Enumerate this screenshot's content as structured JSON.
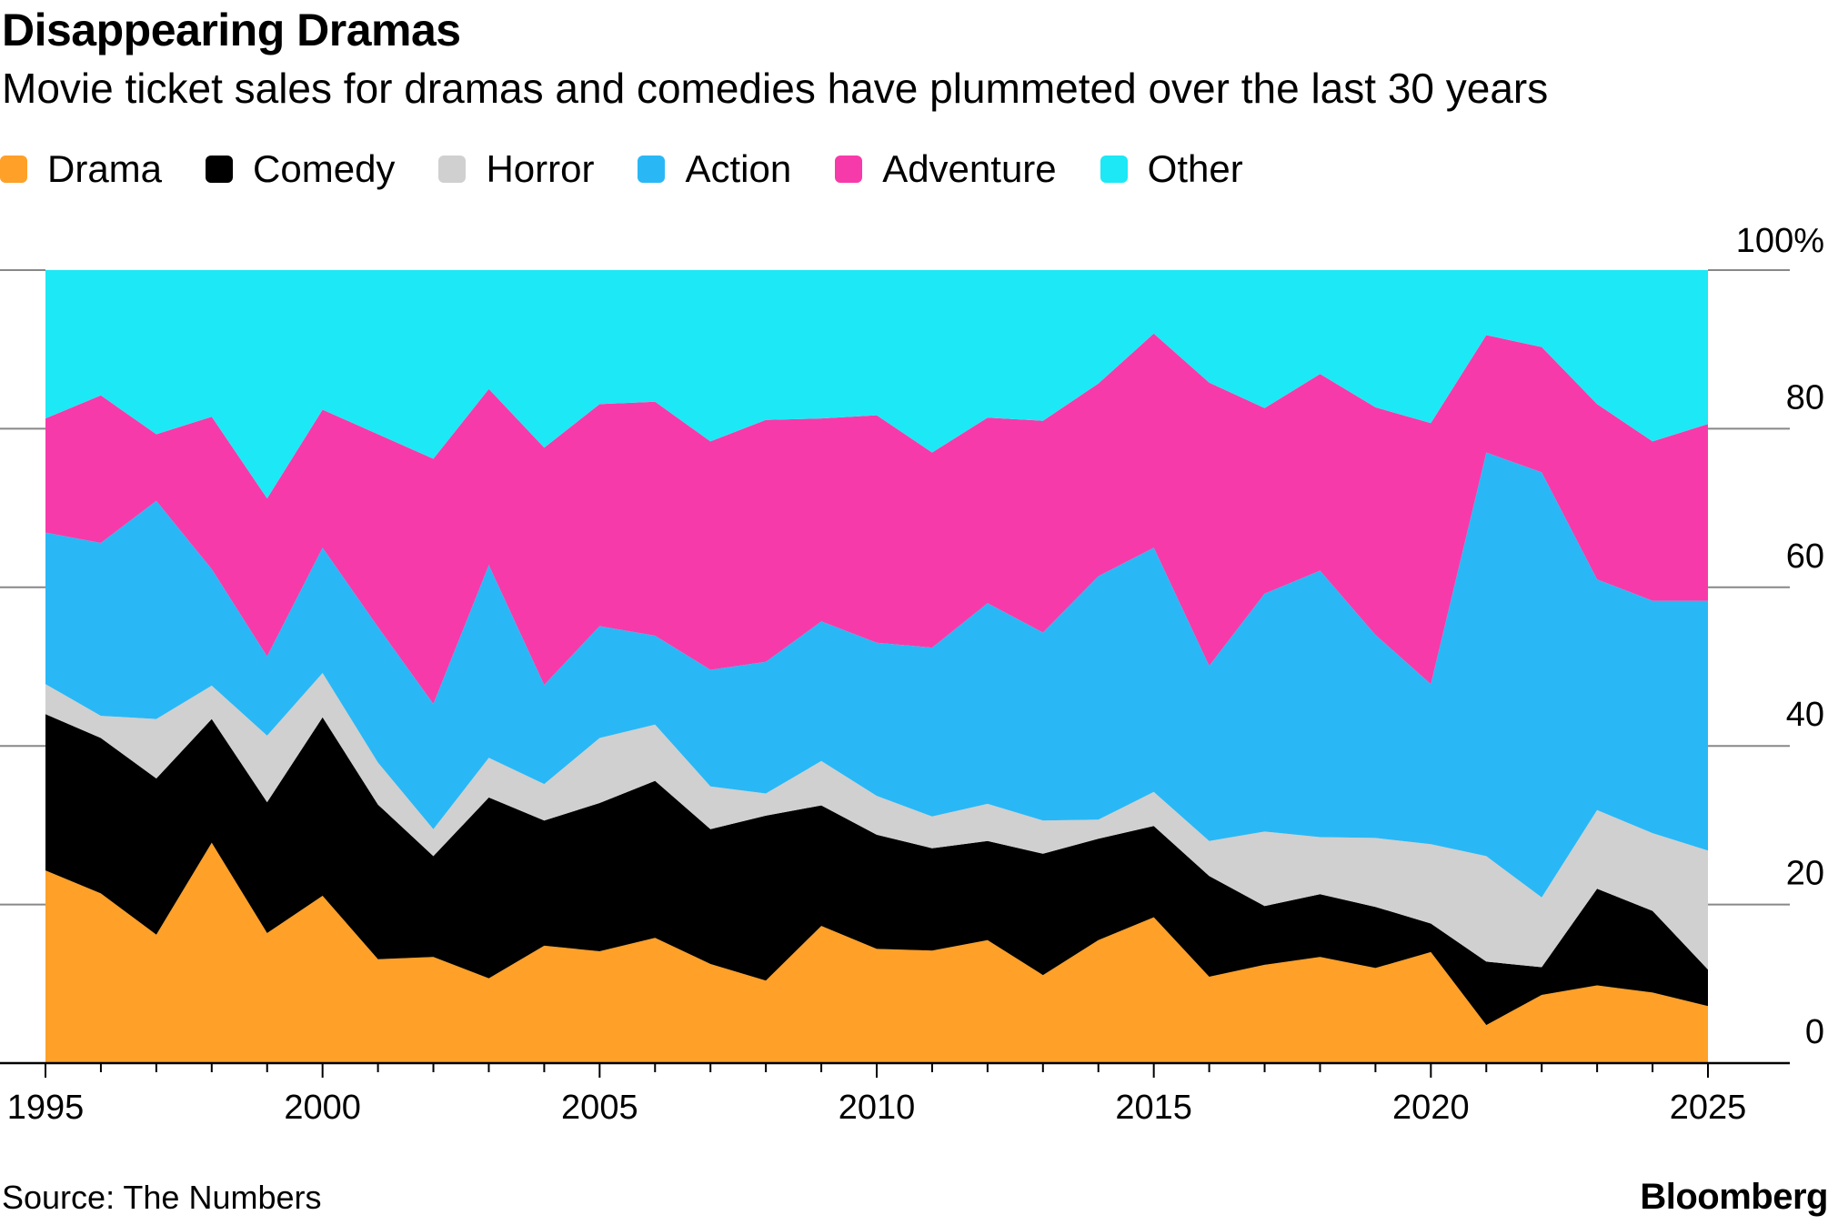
{
  "header": {
    "title": "Disappearing Dramas",
    "subtitle": "Movie ticket sales for dramas and comedies have plummeted over the last 30 years"
  },
  "footer": {
    "source": "Source: The Numbers",
    "brand": "Bloomberg"
  },
  "chart_data": {
    "type": "area",
    "stacked": true,
    "title": "Disappearing Dramas",
    "subtitle": "Movie ticket sales for dramas and comedies have plummeted over the last 30 years",
    "xlabel": "",
    "ylabel": "",
    "x": [
      1995,
      1996,
      1997,
      1998,
      1999,
      2000,
      2001,
      2002,
      2003,
      2004,
      2005,
      2006,
      2007,
      2008,
      2009,
      2010,
      2011,
      2012,
      2013,
      2014,
      2015,
      2016,
      2017,
      2018,
      2019,
      2020,
      2021,
      2022,
      2023,
      2024,
      2025
    ],
    "xlim": [
      1995,
      2025
    ],
    "ylim": [
      0,
      100
    ],
    "x_ticks": [
      1995,
      2000,
      2005,
      2010,
      2015,
      2020,
      2025
    ],
    "y_ticks": [
      {
        "value": 0,
        "label": "0"
      },
      {
        "value": 20,
        "label": "20"
      },
      {
        "value": 40,
        "label": "40"
      },
      {
        "value": 60,
        "label": "60"
      },
      {
        "value": 80,
        "label": "80"
      },
      {
        "value": 100,
        "label": "100%"
      }
    ],
    "y_axis_side": "right",
    "grid": true,
    "legend_position": "top-left",
    "series": [
      {
        "name": "Drama",
        "color": "#ffa028",
        "values": [
          24.3,
          21.4,
          16.2,
          27.8,
          16.4,
          21.1,
          13.1,
          13.4,
          10.7,
          14.8,
          14.1,
          15.8,
          12.5,
          10.4,
          17.3,
          14.4,
          14.2,
          15.5,
          11.1,
          15.5,
          18.4,
          10.9,
          12.4,
          13.4,
          12.0,
          14.0,
          4.8,
          8.6,
          9.8,
          8.9,
          7.2
        ]
      },
      {
        "name": "Comedy",
        "color": "#000000",
        "values": [
          19.7,
          19.6,
          19.7,
          15.6,
          16.5,
          22.5,
          19.5,
          12.7,
          22.8,
          15.8,
          18.7,
          19.8,
          17.0,
          20.8,
          15.2,
          14.4,
          12.9,
          12.5,
          15.3,
          12.8,
          11.5,
          12.7,
          7.4,
          7.9,
          7.7,
          3.6,
          8.0,
          3.5,
          12.2,
          10.3,
          4.6
        ]
      },
      {
        "name": "Horror",
        "color": "#d0d0d0",
        "values": [
          3.8,
          2.8,
          7.5,
          4.2,
          8.4,
          5.6,
          5.3,
          3.4,
          5.0,
          4.6,
          8.2,
          7.1,
          5.4,
          2.8,
          5.6,
          4.9,
          4.0,
          4.7,
          4.2,
          2.4,
          4.3,
          4.4,
          9.4,
          7.2,
          8.7,
          10.0,
          13.3,
          8.8,
          9.9,
          9.8,
          15.0
        ]
      },
      {
        "name": "Action",
        "color": "#29b8f5",
        "values": [
          19.1,
          21.8,
          27.5,
          14.7,
          10.0,
          15.8,
          17.1,
          15.8,
          24.3,
          12.5,
          14.1,
          11.2,
          14.7,
          16.6,
          17.6,
          19.3,
          21.3,
          25.3,
          23.7,
          30.7,
          30.8,
          22.1,
          30.0,
          33.6,
          25.6,
          20.2,
          50.9,
          53.6,
          29.1,
          29.3,
          31.5
        ]
      },
      {
        "name": "Adventure",
        "color": "#f73aa9",
        "values": [
          14.4,
          18.6,
          8.4,
          19.2,
          19.9,
          17.4,
          24.3,
          30.9,
          22.2,
          29.9,
          28.0,
          29.5,
          28.8,
          30.5,
          25.6,
          28.7,
          24.6,
          23.4,
          26.7,
          24.3,
          27.0,
          35.7,
          23.4,
          24.8,
          28.7,
          32.9,
          14.8,
          15.8,
          22.1,
          20.1,
          22.3
        ]
      },
      {
        "name": "Other",
        "color": "#1de8f5",
        "values": [
          18.7,
          15.8,
          20.7,
          18.5,
          28.8,
          17.6,
          20.7,
          23.8,
          15.0,
          22.4,
          16.9,
          16.6,
          21.6,
          18.9,
          18.7,
          18.3,
          23.0,
          18.6,
          19.0,
          14.3,
          8.0,
          14.2,
          17.4,
          13.1,
          17.3,
          19.3,
          8.2,
          9.7,
          16.9,
          21.6,
          19.4
        ]
      }
    ]
  }
}
